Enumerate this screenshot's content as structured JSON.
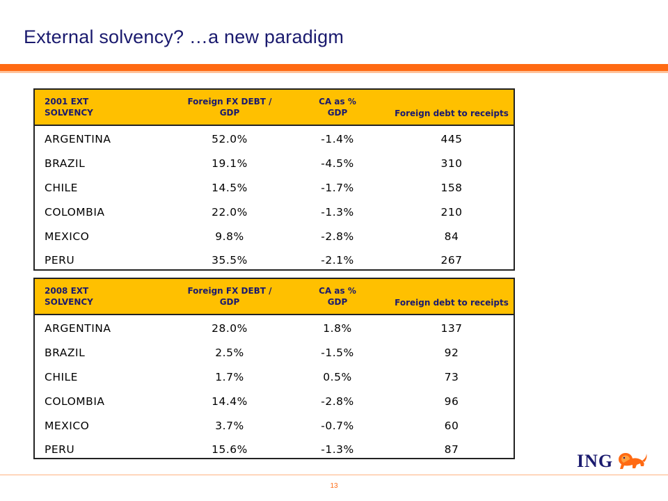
{
  "slide": {
    "title": "External solvency? …a new paradigm",
    "page_number": "13",
    "logo_text": "ING",
    "colors": {
      "accent": "#ff6a13",
      "header_fill": "#ffc000",
      "title": "#1a1a6e"
    }
  },
  "tables": [
    {
      "headers": [
        "2001 EXT SOLVENCY",
        "Foreign FX DEBT / GDP",
        "CA as % GDP",
        "Foreign debt to receipts"
      ],
      "header_lines": [
        [
          "2001 EXT",
          "SOLVENCY"
        ],
        [
          "Foreign FX DEBT /",
          "GDP"
        ],
        [
          "CA as %",
          "GDP"
        ],
        [
          "Foreign debt to receipts"
        ]
      ],
      "rows": [
        [
          "ARGENTINA",
          "52.0%",
          "-1.4%",
          "445"
        ],
        [
          "BRAZIL",
          "19.1%",
          "-4.5%",
          "310"
        ],
        [
          "CHILE",
          "14.5%",
          "-1.7%",
          "158"
        ],
        [
          "COLOMBIA",
          "22.0%",
          "-1.3%",
          "210"
        ],
        [
          "MEXICO",
          "9.8%",
          "-2.8%",
          "84"
        ],
        [
          "PERU",
          "35.5%",
          "-2.1%",
          "267"
        ]
      ]
    },
    {
      "headers": [
        "2008 EXT SOLVENCY",
        "Foreign FX DEBT / GDP",
        "CA as % GDP",
        "Foreign debt to receipts"
      ],
      "header_lines": [
        [
          "2008 EXT",
          "SOLVENCY"
        ],
        [
          "Foreign FX DEBT /",
          "GDP"
        ],
        [
          "CA as %",
          "GDP"
        ],
        [
          "Foreign debt to receipts"
        ]
      ],
      "rows": [
        [
          "ARGENTINA",
          "28.0%",
          "1.8%",
          "137"
        ],
        [
          "BRAZIL",
          "2.5%",
          "-1.5%",
          "92"
        ],
        [
          "CHILE",
          "1.7%",
          "0.5%",
          "73"
        ],
        [
          "COLOMBIA",
          "14.4%",
          "-2.8%",
          "96"
        ],
        [
          "MEXICO",
          "3.7%",
          "-0.7%",
          "60"
        ],
        [
          "PERU",
          "15.6%",
          "-1.3%",
          "87"
        ]
      ]
    }
  ]
}
